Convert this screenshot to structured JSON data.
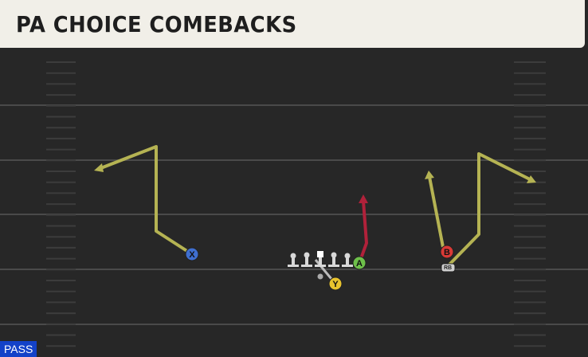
{
  "header": {
    "title": "PA CHOICE COMEBACKS"
  },
  "players": [
    {
      "label": "X"
    },
    {
      "label": "A"
    },
    {
      "label": "B"
    },
    {
      "label": "Y"
    },
    {
      "label": "RB"
    }
  ],
  "tag": "PASS"
}
